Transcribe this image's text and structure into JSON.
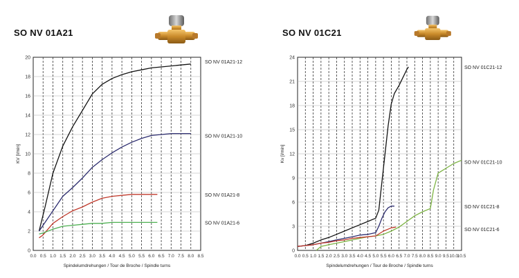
{
  "chart_data": [
    {
      "type": "line",
      "title": "SO NV 01A21",
      "xlabel": "Spindelumdrehungen / Tour de Broche / Spindle turns",
      "ylabel": "KV [l/min]",
      "xlim": [
        0,
        8.5
      ],
      "ylim": [
        0,
        20
      ],
      "xticks": [
        "0.0",
        "0.5",
        "1.0",
        "1.5",
        "2.0",
        "2.5",
        "3.0",
        "3.5",
        "4.0",
        "4.5",
        "5.0",
        "5.5",
        "6.0",
        "6.5",
        "7.0",
        "7.5",
        "8.0",
        "8.5"
      ],
      "yticks": [
        "0",
        "2",
        "4",
        "6",
        "8",
        "10",
        "12",
        "14",
        "16",
        "18",
        "20"
      ],
      "grid": true,
      "series": [
        {
          "name": "SO NV 01A21-12",
          "color": "#111111",
          "x": [
            0.3,
            0.6,
            1.0,
            1.5,
            2.0,
            2.5,
            3.0,
            3.5,
            4.0,
            4.5,
            5.0,
            5.5,
            6.0,
            6.5,
            7.0,
            7.5,
            8.0
          ],
          "y": [
            2.0,
            4.5,
            8.0,
            10.8,
            12.8,
            14.5,
            16.2,
            17.2,
            17.8,
            18.2,
            18.5,
            18.7,
            18.9,
            19.0,
            19.1,
            19.2,
            19.3
          ]
        },
        {
          "name": "SO NV 01A21-10",
          "color": "#2b2b6e",
          "x": [
            0.3,
            0.8,
            1.5,
            2.0,
            2.5,
            3.0,
            3.5,
            4.0,
            4.5,
            5.0,
            5.5,
            6.0,
            6.5,
            7.0,
            7.5,
            8.0
          ],
          "y": [
            2.0,
            3.5,
            5.6,
            6.5,
            7.5,
            8.6,
            9.4,
            10.1,
            10.7,
            11.2,
            11.6,
            11.9,
            12.0,
            12.1,
            12.1,
            12.1
          ]
        },
        {
          "name": "SO NV 01A21-8",
          "color": "#c0392b",
          "x": [
            0.3,
            0.5,
            1.0,
            1.5,
            2.0,
            2.5,
            3.0,
            3.5,
            4.0,
            4.5,
            5.0,
            5.5,
            6.0,
            6.3
          ],
          "y": [
            1.3,
            1.6,
            2.8,
            3.5,
            4.1,
            4.5,
            5.0,
            5.4,
            5.6,
            5.7,
            5.8,
            5.8,
            5.8,
            5.8
          ]
        },
        {
          "name": "SO NV 01A21-6",
          "color": "#4caf50",
          "x": [
            0.3,
            0.5,
            1.0,
            1.5,
            2.0,
            2.5,
            3.0,
            3.5,
            4.0,
            4.5,
            5.0,
            5.5,
            6.0,
            6.3
          ],
          "y": [
            1.7,
            1.8,
            2.2,
            2.5,
            2.6,
            2.7,
            2.8,
            2.8,
            2.9,
            2.9,
            2.9,
            2.9,
            2.9,
            2.9
          ]
        }
      ]
    },
    {
      "type": "line",
      "title": "SO NV 01C21",
      "xlabel": "Spindelumdrehungen / Tour de Broche / Spindle turns",
      "ylabel": "Kv [l/min]",
      "xlim": [
        0,
        10.5
      ],
      "ylim": [
        0,
        24
      ],
      "xticks": [
        "0.0",
        "0.5",
        "1.0",
        "1.5",
        "2.0",
        "2.5",
        "3.0",
        "3.5",
        "4.0",
        "4.5",
        "5.0",
        "5.5",
        "6.0",
        "6.5",
        "7.0",
        "7.5",
        "8.0",
        "8.5",
        "9.0",
        "9.5",
        "10.0",
        "10.5"
      ],
      "yticks": [
        "0",
        "3",
        "6",
        "9",
        "12",
        "15",
        "18",
        "21",
        "24"
      ],
      "grid": true,
      "series": [
        {
          "name": "SO NV 01C21-12",
          "color": "#111111",
          "x": [
            0.0,
            0.5,
            1.0,
            1.5,
            2.0,
            2.5,
            3.0,
            3.5,
            4.0,
            4.5,
            5.0,
            5.2,
            5.4,
            5.6,
            5.8,
            6.0,
            6.2,
            6.5,
            7.0,
            7.1
          ],
          "y": [
            0.5,
            0.6,
            0.9,
            1.3,
            1.6,
            2.0,
            2.4,
            2.8,
            3.2,
            3.6,
            4.0,
            5.0,
            8.5,
            12.0,
            15.5,
            18.2,
            19.5,
            20.5,
            22.5,
            22.8
          ]
        },
        {
          "name": "SO NV 01C21-10",
          "color": "#7cb342",
          "x": [
            1.2,
            1.5,
            2.0,
            2.5,
            3.0,
            3.5,
            4.0,
            4.5,
            5.0,
            5.5,
            6.0,
            6.5,
            7.0,
            7.5,
            8.0,
            8.5,
            8.7,
            9.0,
            9.5,
            10.0,
            10.5
          ],
          "y": [
            0.0,
            0.5,
            0.7,
            0.9,
            1.1,
            1.3,
            1.5,
            1.7,
            1.8,
            2.0,
            2.4,
            2.9,
            3.6,
            4.3,
            4.8,
            5.2,
            7.5,
            9.6,
            10.2,
            10.8,
            11.2
          ]
        },
        {
          "name": "SO NV 01C21-8",
          "color": "#2b2b6e",
          "x": [
            0.0,
            0.5,
            1.0,
            1.5,
            2.0,
            2.5,
            3.0,
            3.5,
            4.0,
            4.5,
            5.0,
            5.2,
            5.4,
            5.6,
            5.8,
            6.0,
            6.2
          ],
          "y": [
            0.5,
            0.6,
            0.7,
            0.9,
            1.1,
            1.3,
            1.5,
            1.7,
            1.9,
            2.0,
            2.2,
            3.0,
            4.0,
            4.8,
            5.3,
            5.5,
            5.5
          ]
        },
        {
          "name": "SO NV 01C21-6",
          "color": "#c0392b",
          "x": [
            0.0,
            0.5,
            1.0,
            1.5,
            2.0,
            2.5,
            3.0,
            3.5,
            4.0,
            4.5,
            5.0,
            5.5,
            6.0,
            6.3
          ],
          "y": [
            0.5,
            0.6,
            0.7,
            0.9,
            1.0,
            1.2,
            1.3,
            1.5,
            1.6,
            1.7,
            1.8,
            2.4,
            2.8,
            2.9
          ]
        }
      ]
    }
  ]
}
